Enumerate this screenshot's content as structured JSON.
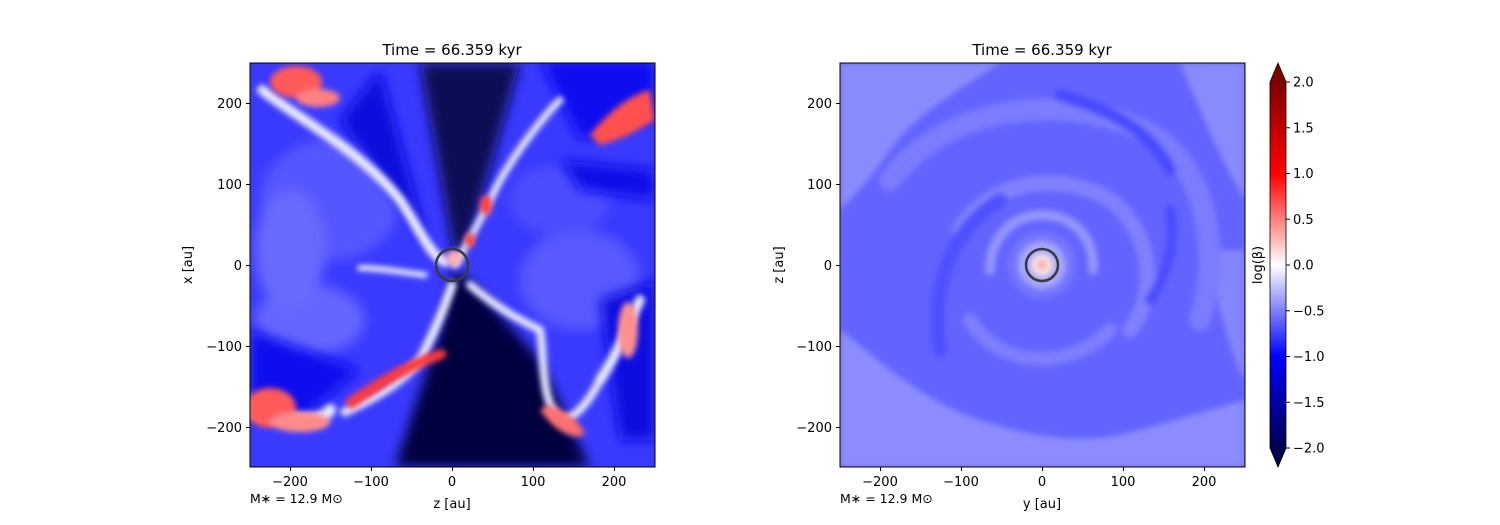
{
  "chart_data": [
    {
      "type": "heatmap",
      "title": "Time = 66.359 kyr",
      "xlabel": "z [au]",
      "ylabel": "x [au]",
      "xlim": [
        -250,
        250
      ],
      "ylim": [
        -250,
        250
      ],
      "xticks": [
        -200,
        -100,
        0,
        100,
        200
      ],
      "yticks": [
        -200,
        -100,
        0,
        100,
        200
      ],
      "xtick_labels": [
        "−200",
        "−100",
        "0",
        "100",
        "200"
      ],
      "ytick_labels": [
        "−200",
        "−100",
        "0",
        "100",
        "200"
      ],
      "annotation": "M∗ = 12.9 M⊙",
      "sink_marker": {
        "x": 0,
        "y": 0,
        "radius_au": 20
      },
      "field": "log(β) map showing a dark low-beta bipolar cavity along z with bright high-beta filaments and lobes",
      "features": [
        {
          "x": -200,
          "y": 230,
          "log_beta": 0.8
        },
        {
          "x": 170,
          "y": 180,
          "log_beta": 0.6
        },
        {
          "x": -50,
          "y": -140,
          "log_beta": 0.9
        },
        {
          "x": -220,
          "y": -180,
          "log_beta": 0.7
        },
        {
          "x": 150,
          "y": -190,
          "log_beta": 0.5
        },
        {
          "x": 230,
          "y": -90,
          "log_beta": 0.4
        },
        {
          "x": 0,
          "y": 10,
          "log_beta": 0.3
        },
        {
          "x": 0,
          "y": 150,
          "log_beta": -1.9
        },
        {
          "x": 0,
          "y": -180,
          "log_beta": -1.9
        }
      ]
    },
    {
      "type": "heatmap",
      "title": "Time = 66.359 kyr",
      "xlabel": "y [au]",
      "ylabel": "z [au]",
      "xlim": [
        -250,
        250
      ],
      "ylim": [
        -250,
        250
      ],
      "xticks": [
        -200,
        -100,
        0,
        100,
        200
      ],
      "yticks": [
        -200,
        -100,
        0,
        100,
        200
      ],
      "xtick_labels": [
        "−200",
        "−100",
        "0",
        "100",
        "200"
      ],
      "ytick_labels": [
        "−200",
        "−100",
        "0",
        "100",
        "200"
      ],
      "annotation": "M∗ = 12.9 M⊙",
      "sink_marker": {
        "x": 0,
        "y": 0,
        "radius_au": 20
      },
      "field": "log(β) map with spiral pattern, mostly between -1.0 and -0.3, warm spot at the center",
      "features": [
        {
          "x": 0,
          "y": 0,
          "log_beta": 0.3
        },
        {
          "x": 0,
          "y": 200,
          "log_beta": -0.9
        },
        {
          "x": -100,
          "y": 60,
          "log_beta": -0.4
        },
        {
          "x": 120,
          "y": -60,
          "log_beta": -0.8
        }
      ]
    }
  ],
  "colorbar": {
    "label": "log(β)",
    "min": -2.0,
    "max": 2.0,
    "extend": "both",
    "ticks": [
      2.0,
      1.5,
      1.0,
      0.5,
      0.0,
      -0.5,
      -1.0,
      -1.5,
      -2.0
    ],
    "tick_labels": [
      "2.0",
      "1.5",
      "1.0",
      "0.5",
      "0.0",
      "−0.5",
      "−1.0",
      "−1.5",
      "−2.0"
    ],
    "colormap": "seismic",
    "colors": [
      "#00004d",
      "#0000ff",
      "#ffffff",
      "#ff0000",
      "#800000"
    ]
  }
}
